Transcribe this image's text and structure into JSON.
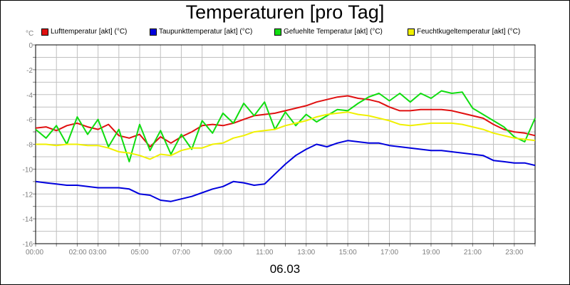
{
  "chart_data": {
    "type": "line",
    "title": "Temperaturen [pro Tag]",
    "date_label": "06.03",
    "unit": "°C",
    "ylim": [
      -16,
      0
    ],
    "y_ticks": [
      "0",
      "-2",
      "-4",
      "-6",
      "-8",
      "-10",
      "-12",
      "-14",
      "-16"
    ],
    "xlim": [
      0,
      24
    ],
    "x_tick_labels": [
      "00:00",
      "02:00 03:00",
      "05:00",
      "07:00",
      "09:00",
      "11:00",
      "13:00",
      "15:00",
      "17:00",
      "19:00",
      "21:00",
      "23:00"
    ],
    "x_tick_hours": [
      0,
      2.5,
      5,
      7,
      9,
      11,
      13,
      15,
      17,
      19,
      21,
      23
    ],
    "grid": true,
    "legend_position": "top",
    "series": [
      {
        "name": "Lufttemperatur [akt] (°C)",
        "color": "#e01010",
        "x": [
          0,
          0.5,
          1,
          1.5,
          2,
          2.5,
          3,
          3.5,
          4,
          4.5,
          5,
          5.5,
          6,
          6.5,
          7,
          7.5,
          8,
          8.5,
          9,
          9.5,
          10,
          10.5,
          11,
          11.5,
          12,
          12.5,
          13,
          13.5,
          14,
          14.5,
          15,
          15.5,
          16,
          16.5,
          17,
          17.5,
          18,
          18.5,
          19,
          19.5,
          20,
          20.5,
          21,
          21.5,
          22,
          22.5,
          23,
          23.5,
          24
        ],
        "y": [
          -6.7,
          -6.6,
          -6.9,
          -6.5,
          -6.3,
          -6.6,
          -6.8,
          -6.4,
          -7.3,
          -7.5,
          -7.2,
          -8.2,
          -7.4,
          -7.9,
          -7.4,
          -7.0,
          -6.5,
          -6.4,
          -6.5,
          -6.3,
          -6.0,
          -5.7,
          -5.6,
          -5.5,
          -5.3,
          -5.1,
          -4.9,
          -4.6,
          -4.4,
          -4.2,
          -4.1,
          -4.3,
          -4.4,
          -4.6,
          -5.0,
          -5.3,
          -5.3,
          -5.2,
          -5.2,
          -5.2,
          -5.3,
          -5.5,
          -5.7,
          -5.9,
          -6.4,
          -6.8,
          -7.0,
          -7.1,
          -7.3
        ]
      },
      {
        "name": "Taupunkttemperatur [akt] (°C)",
        "color": "#0000dd",
        "x": [
          0,
          0.5,
          1,
          1.5,
          2,
          2.5,
          3,
          3.5,
          4,
          4.5,
          5,
          5.5,
          6,
          6.5,
          7,
          7.5,
          8,
          8.5,
          9,
          9.5,
          10,
          10.5,
          11,
          11.5,
          12,
          12.5,
          13,
          13.5,
          14,
          14.5,
          15,
          15.5,
          16,
          16.5,
          17,
          17.5,
          18,
          18.5,
          19,
          19.5,
          20,
          20.5,
          21,
          21.5,
          22,
          22.5,
          23,
          23.5,
          24
        ],
        "y": [
          -11.0,
          -11.1,
          -11.2,
          -11.3,
          -11.3,
          -11.4,
          -11.5,
          -11.5,
          -11.5,
          -11.6,
          -12.0,
          -12.1,
          -12.5,
          -12.6,
          -12.4,
          -12.2,
          -11.9,
          -11.6,
          -11.4,
          -11.0,
          -11.1,
          -11.3,
          -11.2,
          -10.4,
          -9.6,
          -8.9,
          -8.4,
          -8.0,
          -8.2,
          -7.9,
          -7.7,
          -7.8,
          -7.9,
          -7.9,
          -8.1,
          -8.2,
          -8.3,
          -8.4,
          -8.5,
          -8.5,
          -8.6,
          -8.7,
          -8.8,
          -8.9,
          -9.3,
          -9.4,
          -9.5,
          -9.5,
          -9.7
        ]
      },
      {
        "name": "Gefuehlte Temperatur [akt] (°C)",
        "color": "#10dd10",
        "x": [
          0,
          0.5,
          1,
          1.5,
          2,
          2.5,
          3,
          3.5,
          4,
          4.5,
          5,
          5.5,
          6,
          6.5,
          7,
          7.5,
          8,
          8.5,
          9,
          9.5,
          10,
          10.5,
          11,
          11.5,
          12,
          12.5,
          13,
          13.5,
          14,
          14.5,
          15,
          15.5,
          16,
          16.5,
          17,
          17.5,
          18,
          18.5,
          19,
          19.5,
          20,
          20.5,
          21,
          21.5,
          22,
          22.5,
          23,
          23.5,
          24
        ],
        "y": [
          -6.8,
          -7.5,
          -6.5,
          -8.0,
          -5.8,
          -7.2,
          -6.0,
          -8.2,
          -6.8,
          -9.4,
          -6.4,
          -8.5,
          -6.9,
          -8.8,
          -7.2,
          -8.4,
          -6.1,
          -7.1,
          -5.5,
          -6.3,
          -4.7,
          -5.7,
          -4.6,
          -6.8,
          -5.4,
          -6.5,
          -5.6,
          -6.2,
          -5.7,
          -5.2,
          -5.3,
          -4.7,
          -4.2,
          -3.9,
          -4.5,
          -3.9,
          -4.6,
          -3.9,
          -4.3,
          -3.7,
          -3.9,
          -3.8,
          -5.1,
          -5.6,
          -6.1,
          -6.6,
          -7.4,
          -7.8,
          -5.9
        ]
      },
      {
        "name": "Feuchtkugeltemperatur [akt] (°C)",
        "color": "#f0f000",
        "x": [
          0,
          0.5,
          1,
          1.5,
          2,
          2.5,
          3,
          3.5,
          4,
          4.5,
          5,
          5.5,
          6,
          6.5,
          7,
          7.5,
          8,
          8.5,
          9,
          9.5,
          10,
          10.5,
          11,
          11.5,
          12,
          12.5,
          13,
          13.5,
          14,
          14.5,
          15,
          15.5,
          16,
          16.5,
          17,
          17.5,
          18,
          18.5,
          19,
          19.5,
          20,
          20.5,
          21,
          21.5,
          22,
          22.5,
          23,
          23.5,
          24
        ],
        "y": [
          -8.0,
          -8.0,
          -8.1,
          -8.0,
          -8.0,
          -8.1,
          -8.1,
          -8.3,
          -8.6,
          -8.7,
          -8.9,
          -9.2,
          -8.8,
          -8.9,
          -8.5,
          -8.3,
          -8.3,
          -8.0,
          -7.9,
          -7.5,
          -7.3,
          -7.0,
          -6.9,
          -6.8,
          -6.5,
          -6.3,
          -6.1,
          -5.8,
          -5.6,
          -5.5,
          -5.4,
          -5.6,
          -5.7,
          -5.9,
          -6.1,
          -6.4,
          -6.5,
          -6.4,
          -6.3,
          -6.3,
          -6.3,
          -6.4,
          -6.6,
          -6.8,
          -7.1,
          -7.3,
          -7.5,
          -7.6,
          -7.7
        ]
      }
    ]
  }
}
